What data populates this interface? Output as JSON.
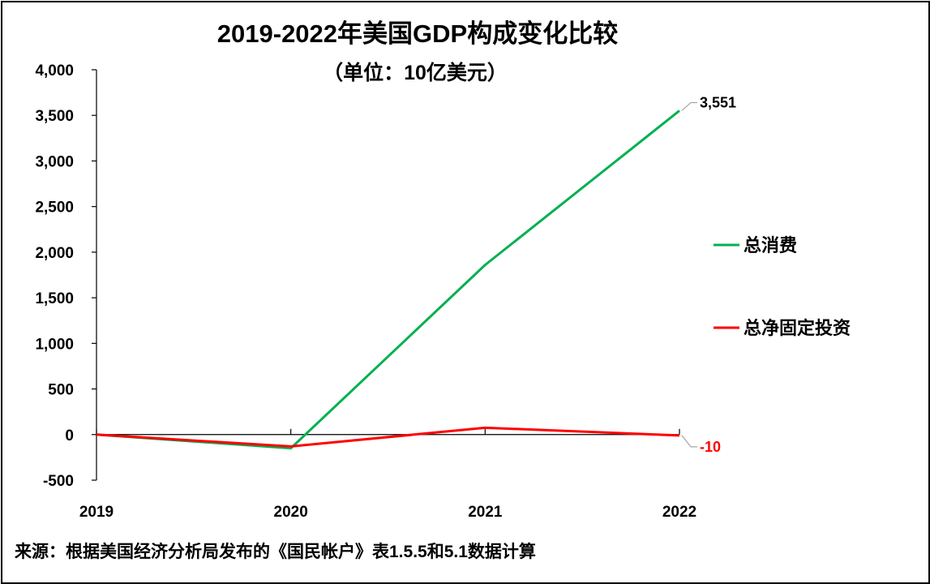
{
  "chart_data": {
    "type": "line",
    "title": "2019-2022年美国GDP构成变化比较",
    "subtitle": "（单位：10亿美元）",
    "categories": [
      "2019",
      "2020",
      "2021",
      "2022"
    ],
    "ylim": [
      -500,
      4000
    ],
    "yticks": [
      -500,
      0,
      500,
      1000,
      1500,
      2000,
      2500,
      3000,
      3500,
      4000
    ],
    "ytick_labels": [
      "-500",
      "0",
      "500",
      "1,000",
      "1,500",
      "2,000",
      "2,500",
      "3,000",
      "3,500",
      "4,000"
    ],
    "grid": false,
    "legend_position": "right",
    "series": [
      {
        "name": "总消费",
        "color": "#00B050",
        "values": [
          0,
          -150,
          1860,
          3551
        ],
        "end_label": "3,551"
      },
      {
        "name": "总净固定投资",
        "color": "#FF0000",
        "values": [
          0,
          -130,
          75,
          -10
        ],
        "end_label": "-10"
      }
    ]
  },
  "source_note": "来源：根据美国经济分析局发布的《国民帐户》表1.5.5和5.1数据计算"
}
